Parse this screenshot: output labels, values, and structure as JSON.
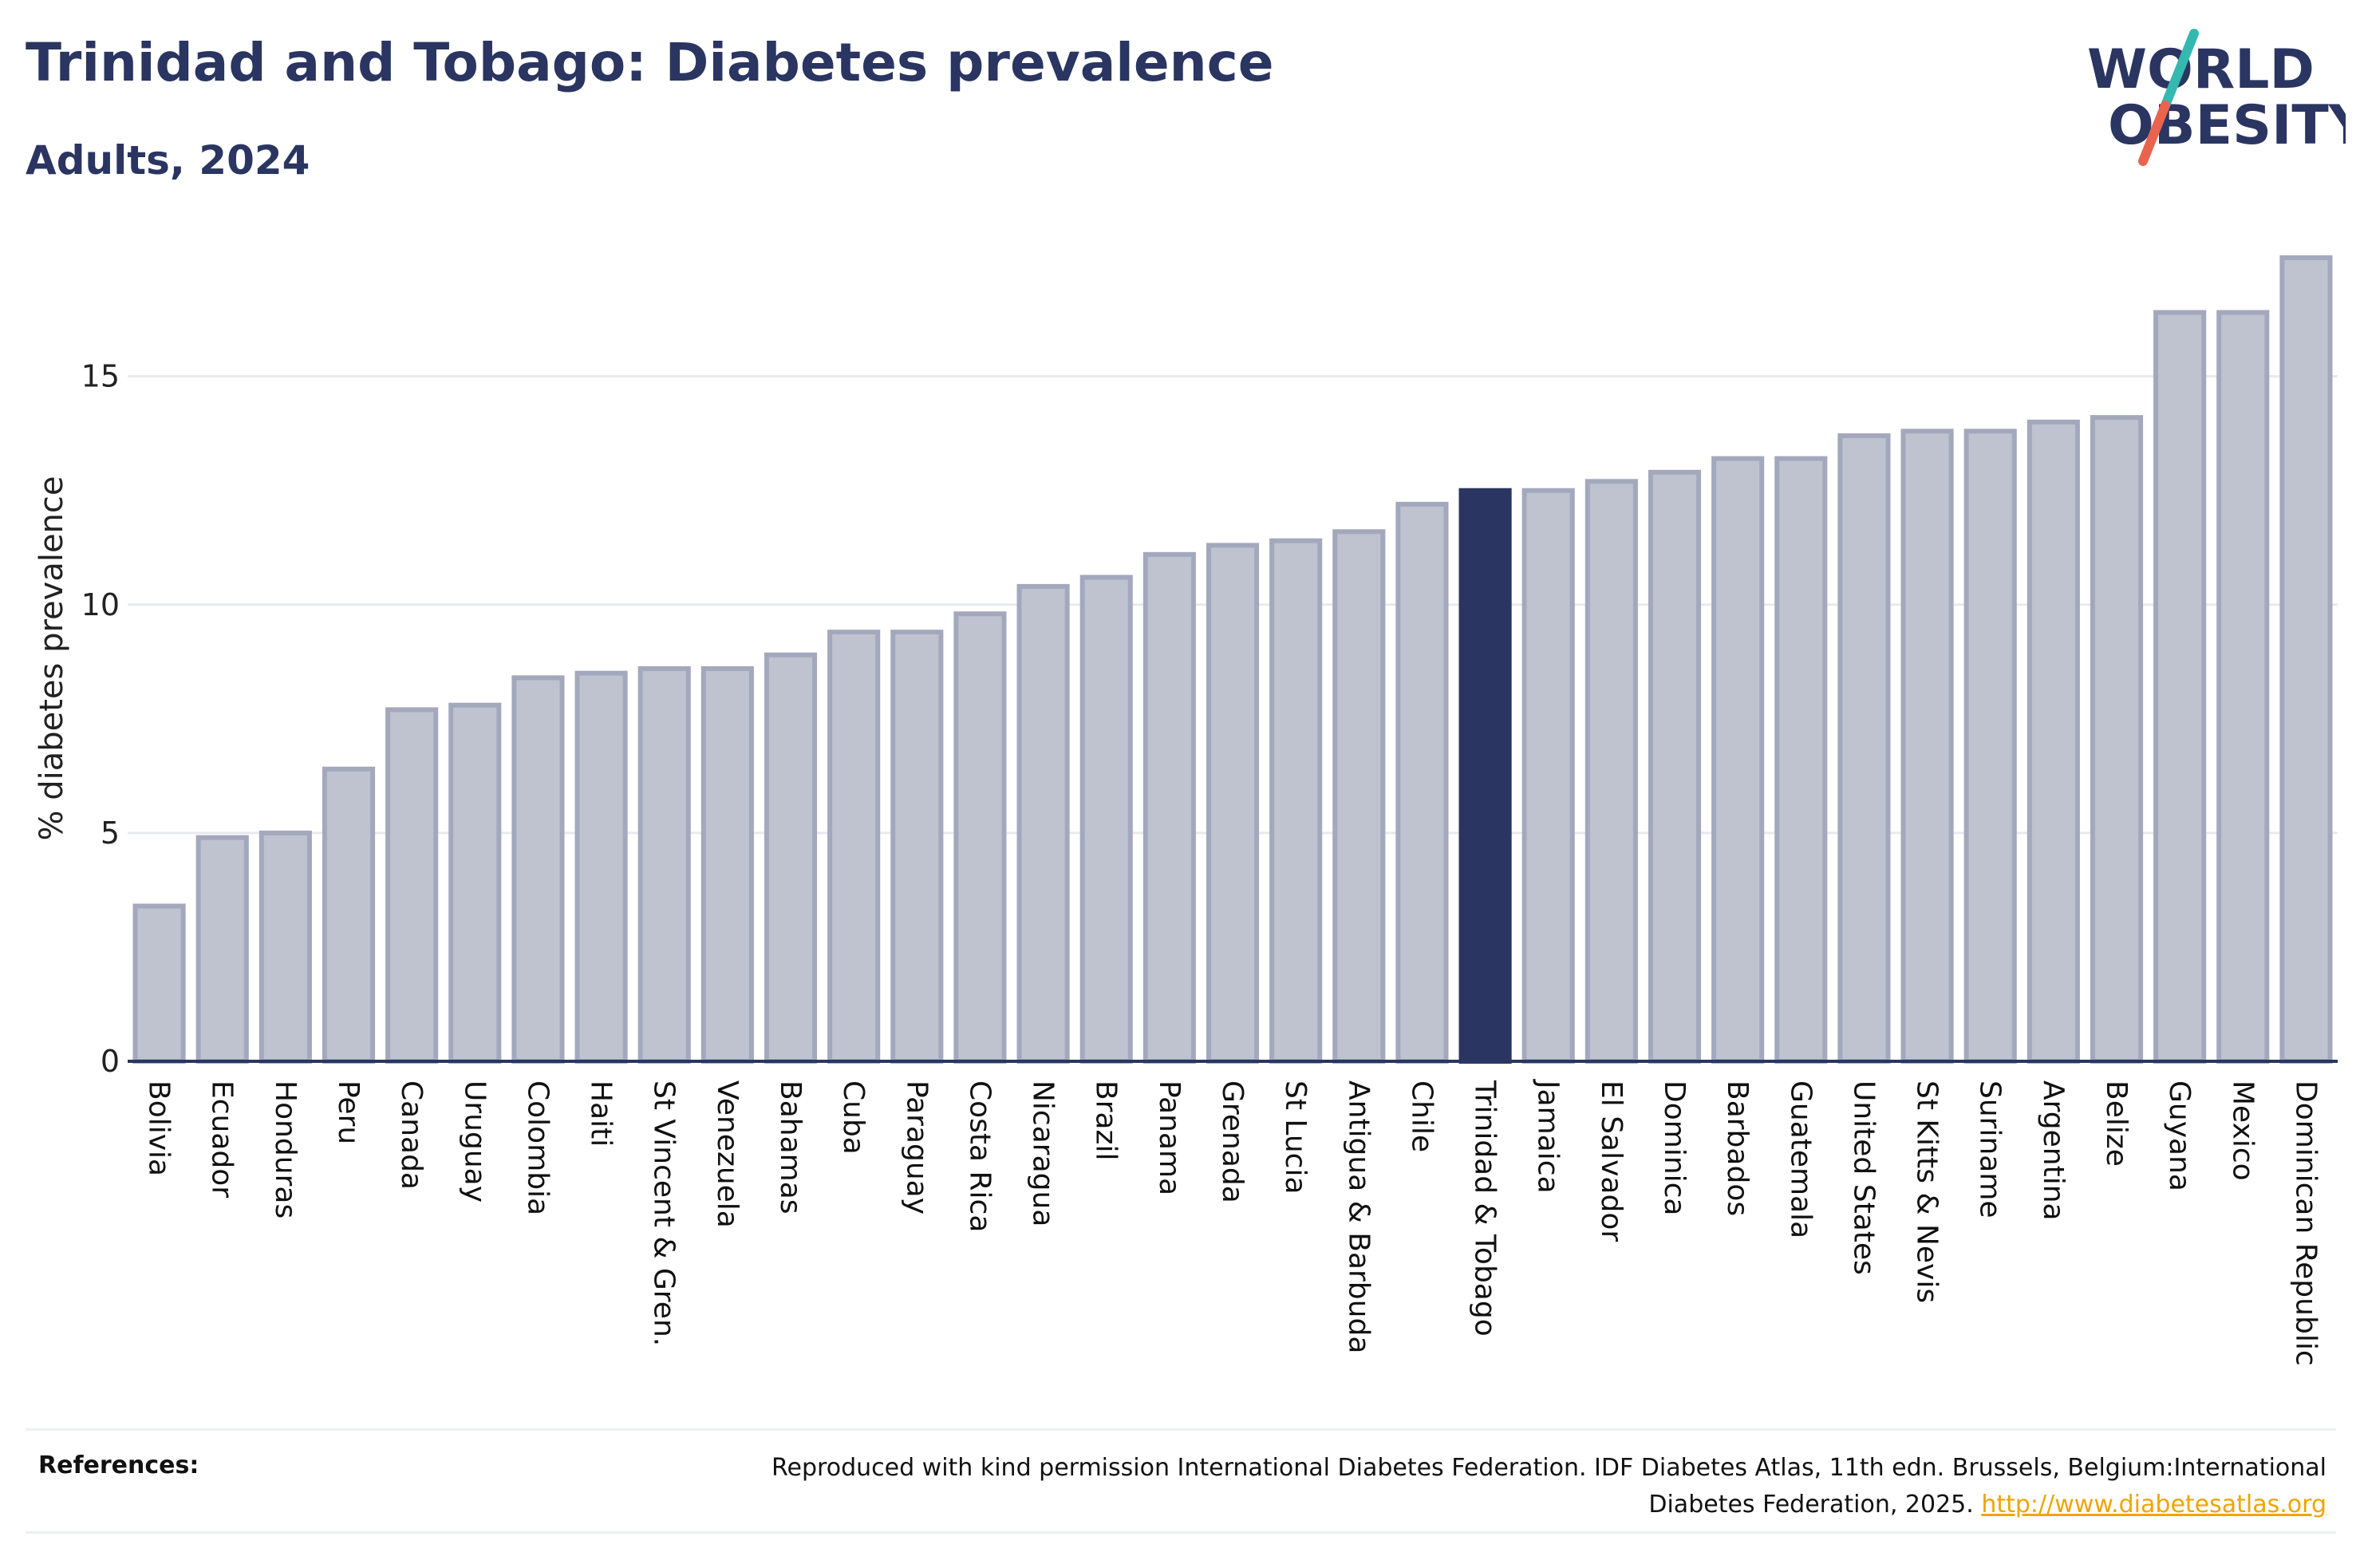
{
  "header": {
    "title": "Trinidad and Tobago: Diabetes prevalence",
    "subtitle": "Adults, 2024"
  },
  "logo": {
    "line1": "WORLD",
    "line2": "OBESITY",
    "colors": {
      "text": "#2a3561",
      "slash_top": "#35b8b0",
      "slash_bottom": "#e8644f"
    }
  },
  "references": {
    "label": "References:",
    "text": "Reproduced with kind permission International Diabetes Federation. IDF Diabetes Atlas, 11th edn. Brussels, Belgium:International Diabetes Federation, 2025.",
    "link": "http://www.diabetesatlas.org"
  },
  "chart_data": {
    "type": "bar",
    "ylabel": "% diabetes prevalence",
    "xlabel": "",
    "ylim": [
      0,
      18
    ],
    "yticks": [
      0,
      5,
      10,
      15
    ],
    "grid": true,
    "highlight": "Trinidad & Tobago",
    "colors": {
      "bar": "#bfc3cf",
      "bar_edge": "#a3a8bd",
      "highlight": "#2a3561",
      "axis": "#2a3561",
      "grid": "#e9eaee"
    },
    "categories": [
      "Bolivia",
      "Ecuador",
      "Honduras",
      "Peru",
      "Canada",
      "Uruguay",
      "Colombia",
      "Haiti",
      "St Vincent & Gren.",
      "Venezuela",
      "Bahamas",
      "Cuba",
      "Paraguay",
      "Costa Rica",
      "Nicaragua",
      "Brazil",
      "Panama",
      "Grenada",
      "St Lucia",
      "Antigua & Barbuda",
      "Chile",
      "Trinidad & Tobago",
      "Jamaica",
      "El Salvador",
      "Dominica",
      "Barbados",
      "Guatemala",
      "United States",
      "St Kitts & Nevis",
      "Suriname",
      "Argentina",
      "Belize",
      "Guyana",
      "Mexico",
      "Dominican Republic"
    ],
    "values": [
      3.4,
      4.9,
      5.0,
      6.4,
      7.7,
      7.8,
      8.4,
      8.5,
      8.6,
      8.6,
      8.9,
      9.4,
      9.4,
      9.8,
      10.4,
      10.6,
      11.1,
      11.3,
      11.4,
      11.6,
      12.2,
      12.5,
      12.5,
      12.7,
      12.9,
      13.2,
      13.2,
      13.7,
      13.8,
      13.8,
      14.0,
      14.1,
      16.4,
      16.4,
      17.6
    ]
  }
}
